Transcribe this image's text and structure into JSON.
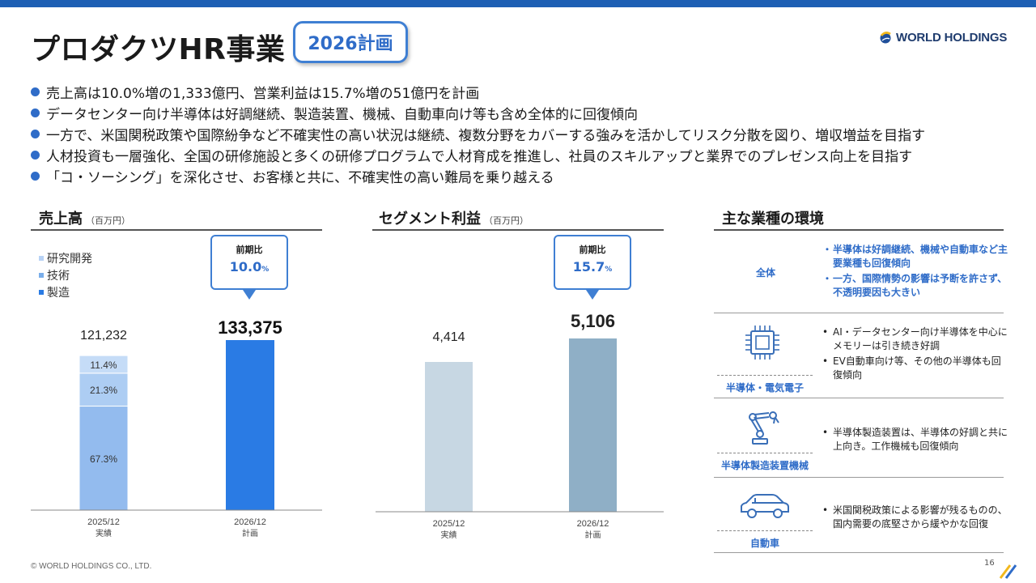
{
  "header": {
    "title": "プロダクツHR事業",
    "badge": "2026計画",
    "logo_text": "WORLD HOLDINGS"
  },
  "bullets": [
    "売上高は10.0%増の1,333億円、営業利益は15.7%増の51億円を計画",
    "データセンター向け半導体は好調継続、製造装置、機械、自動車向け等も含め全体的に回復傾向",
    "一方で、米国関税政策や国際紛争など不確実性の高い状況は継続、複数分野をカバーする強みを活かしてリスク分散を図り、増収増益を目指す",
    "人材投資も一層強化、全国の研修施設と多くの研修プログラムで人材育成を推進し、社員のスキルアップと業界でのプレゼンス向上を目指す",
    "「コ・ソーシング」を深化させ、お客様と共に、不確実性の高い難局を乗り越える"
  ],
  "sales_section": {
    "title": "売上高",
    "unit": "（百万円）"
  },
  "segment_section": {
    "title": "セグメント利益",
    "unit": "（百万円）"
  },
  "env_section": {
    "title": "主な業種の環境"
  },
  "colors": {
    "accent": "#2f6cc8",
    "sales_plan_bar": "#2a7be4",
    "sales_research": "#c5dcf7",
    "sales_tech": "#adcdf3",
    "sales_manufacturing": "#93bbee",
    "segment_actual_bar": "#c7d7e3",
    "segment_plan_bar": "#8fafc6"
  },
  "chart_data": [
    {
      "type": "bar",
      "title": "売上高",
      "unit": "（百万円）",
      "legend": [
        "研究開発",
        "技術",
        "製造"
      ],
      "categories": [
        {
          "period": "2025/12",
          "label": "実績"
        },
        {
          "period": "2026/12",
          "label": "計画"
        }
      ],
      "values": [
        121232,
        133375
      ],
      "value_labels": [
        "121,232",
        "133,375"
      ],
      "stack_2025": [
        {
          "name": "製造",
          "pct": 67.3,
          "label": "67.3%"
        },
        {
          "name": "技術",
          "pct": 21.3,
          "label": "21.3%"
        },
        {
          "name": "研究開発",
          "pct": 11.4,
          "label": "11.4%"
        }
      ],
      "callout": {
        "label": "前期比",
        "value": "10.0",
        "unit": "%"
      }
    },
    {
      "type": "bar",
      "title": "セグメント利益",
      "unit": "（百万円）",
      "categories": [
        {
          "period": "2025/12",
          "label": "実績"
        },
        {
          "period": "2026/12",
          "label": "計画"
        }
      ],
      "values": [
        4414,
        5106
      ],
      "value_labels": [
        "4,414",
        "5,106"
      ],
      "callout": {
        "label": "前期比",
        "value": "15.7",
        "unit": "%"
      }
    }
  ],
  "environment": [
    {
      "label": "全体",
      "icon": "none",
      "items": [
        "半導体は好調継続、機械や自動車など主要業種も回復傾向",
        "一方、国際情勢の影響は予断を許さず、不透明要因も大きい"
      ]
    },
    {
      "label": "半導体・電気電子",
      "icon": "chip-icon",
      "items": [
        "AI・データセンター向け半導体を中心にメモリーは引き続き好調",
        "EV自動車向け等、その他の半導体も回復傾向"
      ]
    },
    {
      "label": "半導体製造装置機械",
      "icon": "robot-arm-icon",
      "items": [
        "半導体製造装置は、半導体の好調と共に上向き。工作機械も回復傾向"
      ]
    },
    {
      "label": "自動車",
      "icon": "car-icon",
      "items": [
        "米国関税政策による影響が残るものの、国内需要の底堅さから緩やかな回復"
      ]
    }
  ],
  "footer": {
    "copyright": "© WORLD HOLDINGS CO., LTD.",
    "page": "16"
  }
}
